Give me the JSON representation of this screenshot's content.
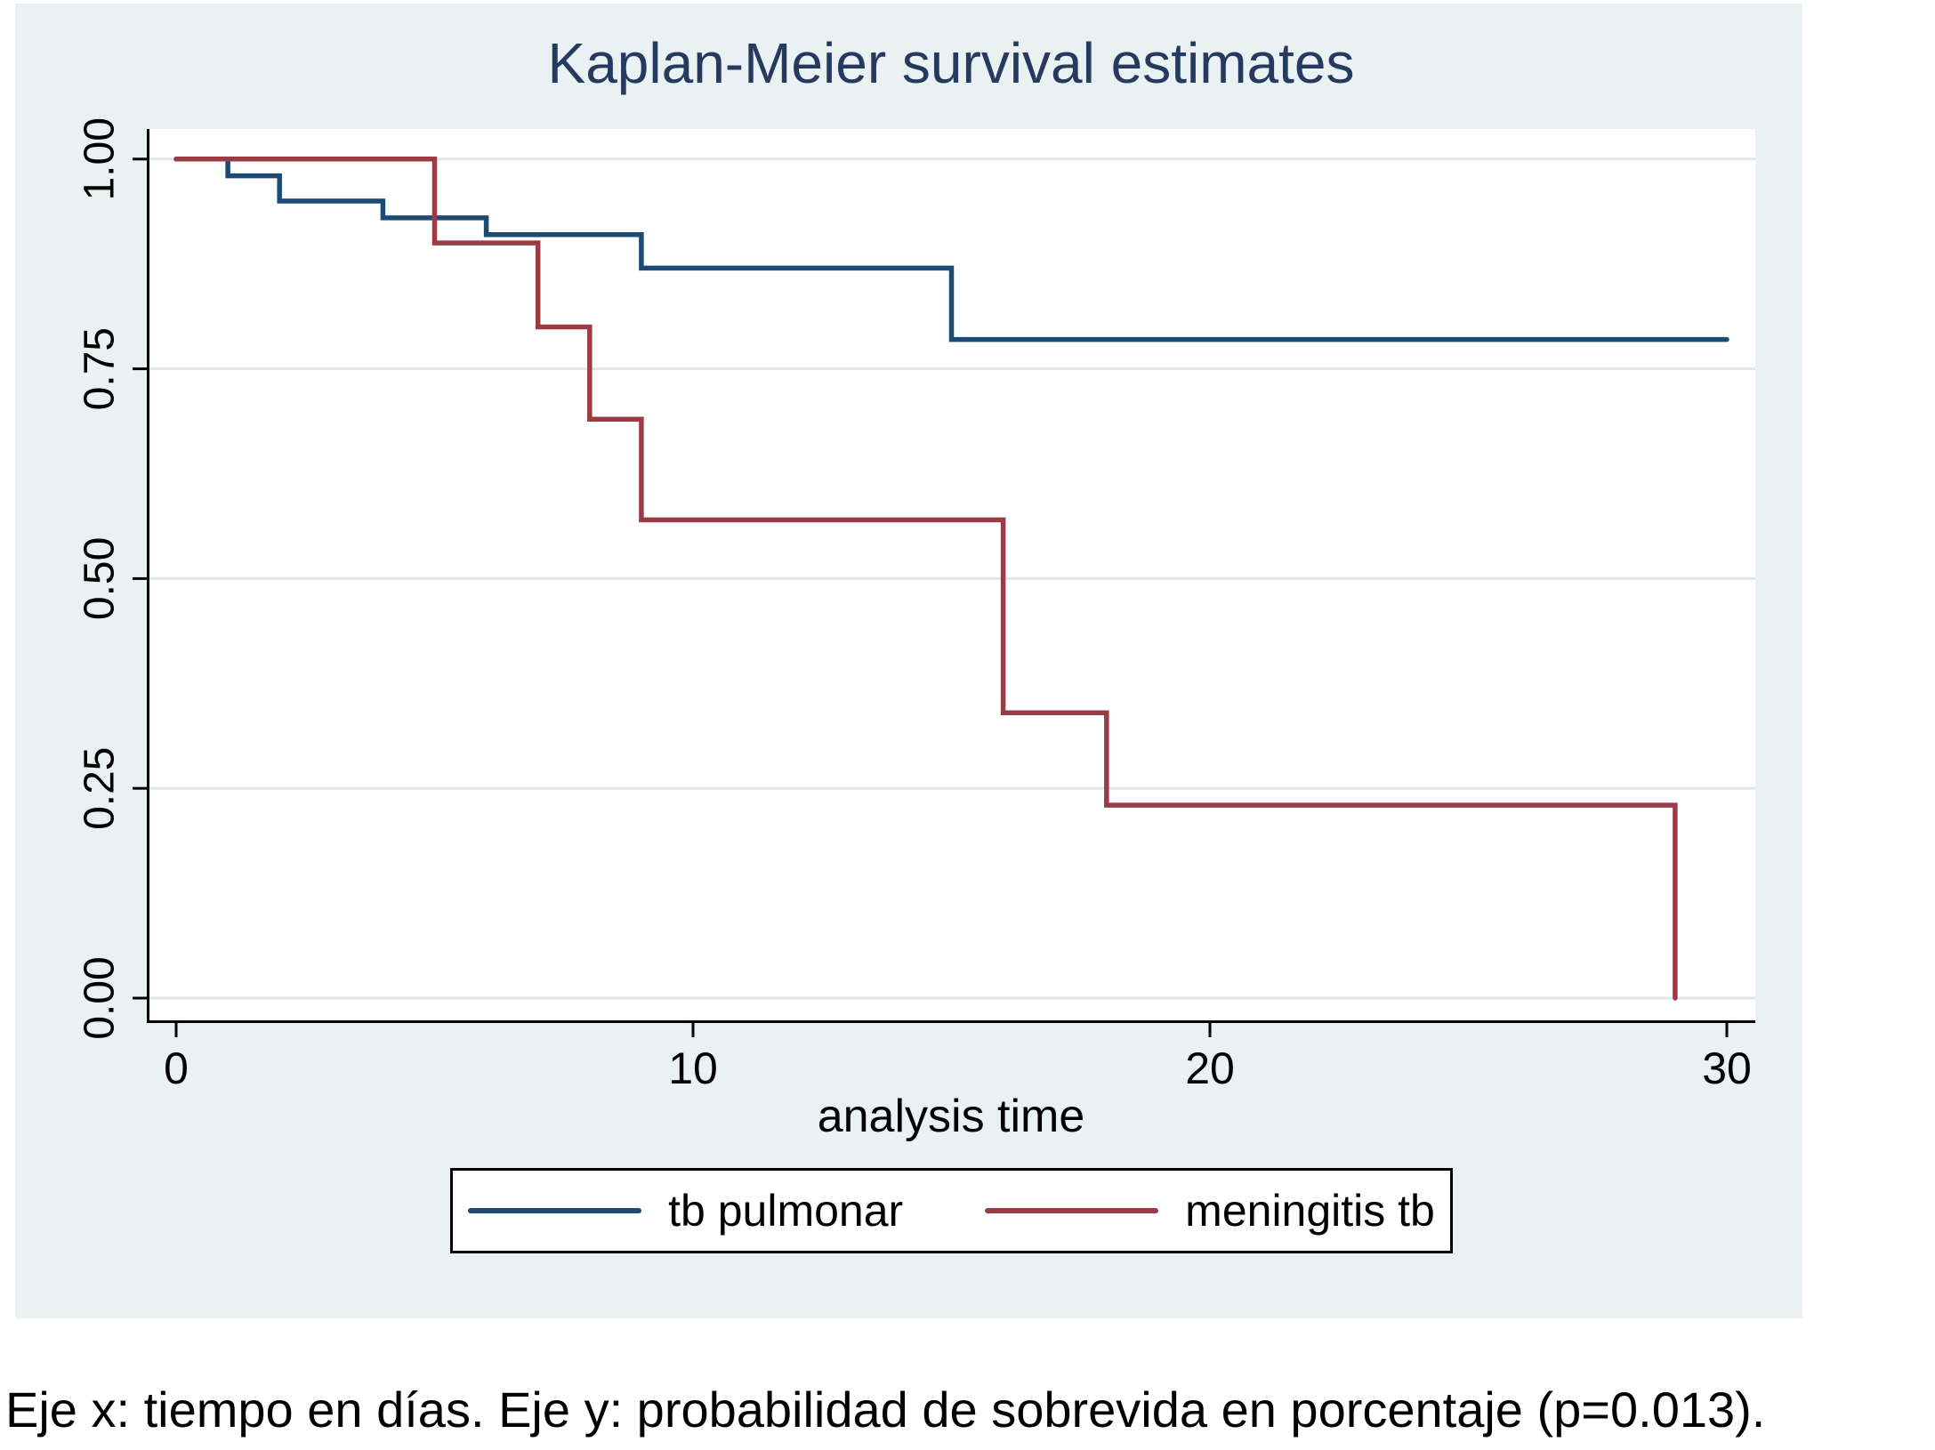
{
  "figure": {
    "title": "Kaplan-Meier survival estimates",
    "xlabel": "analysis time",
    "caption": "Eje x: tiempo en días. Eje y: probabilidad de sobrevida en porcentaje (p=0.013).",
    "p_value": "0.013",
    "colors": {
      "panel_background": "#eaf1f3",
      "plot_background": "#ffffff",
      "gridline": "#dde8ec",
      "axis": "#000000",
      "title_text": "#253a5e",
      "tb_pulmonar": "#1d4a74",
      "meningitis_tb": "#9d3b45"
    }
  },
  "chart_data": {
    "type": "line",
    "subtype": "kaplan-meier-step",
    "title": "Kaplan-Meier survival estimates",
    "xlabel": "analysis time",
    "ylabel": "",
    "xlim": [
      0,
      30
    ],
    "ylim": [
      0.0,
      1.0
    ],
    "x_ticks": [
      0,
      10,
      20,
      30
    ],
    "x_tick_labels": [
      "0",
      "10",
      "20",
      "30"
    ],
    "y_ticks": [
      0.0,
      0.25,
      0.5,
      0.75,
      1.0
    ],
    "y_tick_labels": [
      "0.00",
      "0.25",
      "0.50",
      "0.75",
      "1.00"
    ],
    "grid": "horizontal",
    "legend_position": "bottom",
    "series": [
      {
        "name": "tb pulmonar",
        "color": "#1d4a74",
        "step_points": [
          [
            0,
            1.0
          ],
          [
            1,
            0.98
          ],
          [
            2,
            0.95
          ],
          [
            4,
            0.93
          ],
          [
            6,
            0.91
          ],
          [
            9,
            0.87
          ],
          [
            15,
            0.785
          ],
          [
            30,
            0.785
          ]
        ]
      },
      {
        "name": "meningitis tb",
        "color": "#9d3b45",
        "step_points": [
          [
            0,
            1.0
          ],
          [
            5,
            0.9
          ],
          [
            7,
            0.8
          ],
          [
            8,
            0.69
          ],
          [
            9,
            0.57
          ],
          [
            16,
            0.34
          ],
          [
            18,
            0.23
          ],
          [
            29,
            0.0
          ]
        ]
      }
    ]
  }
}
